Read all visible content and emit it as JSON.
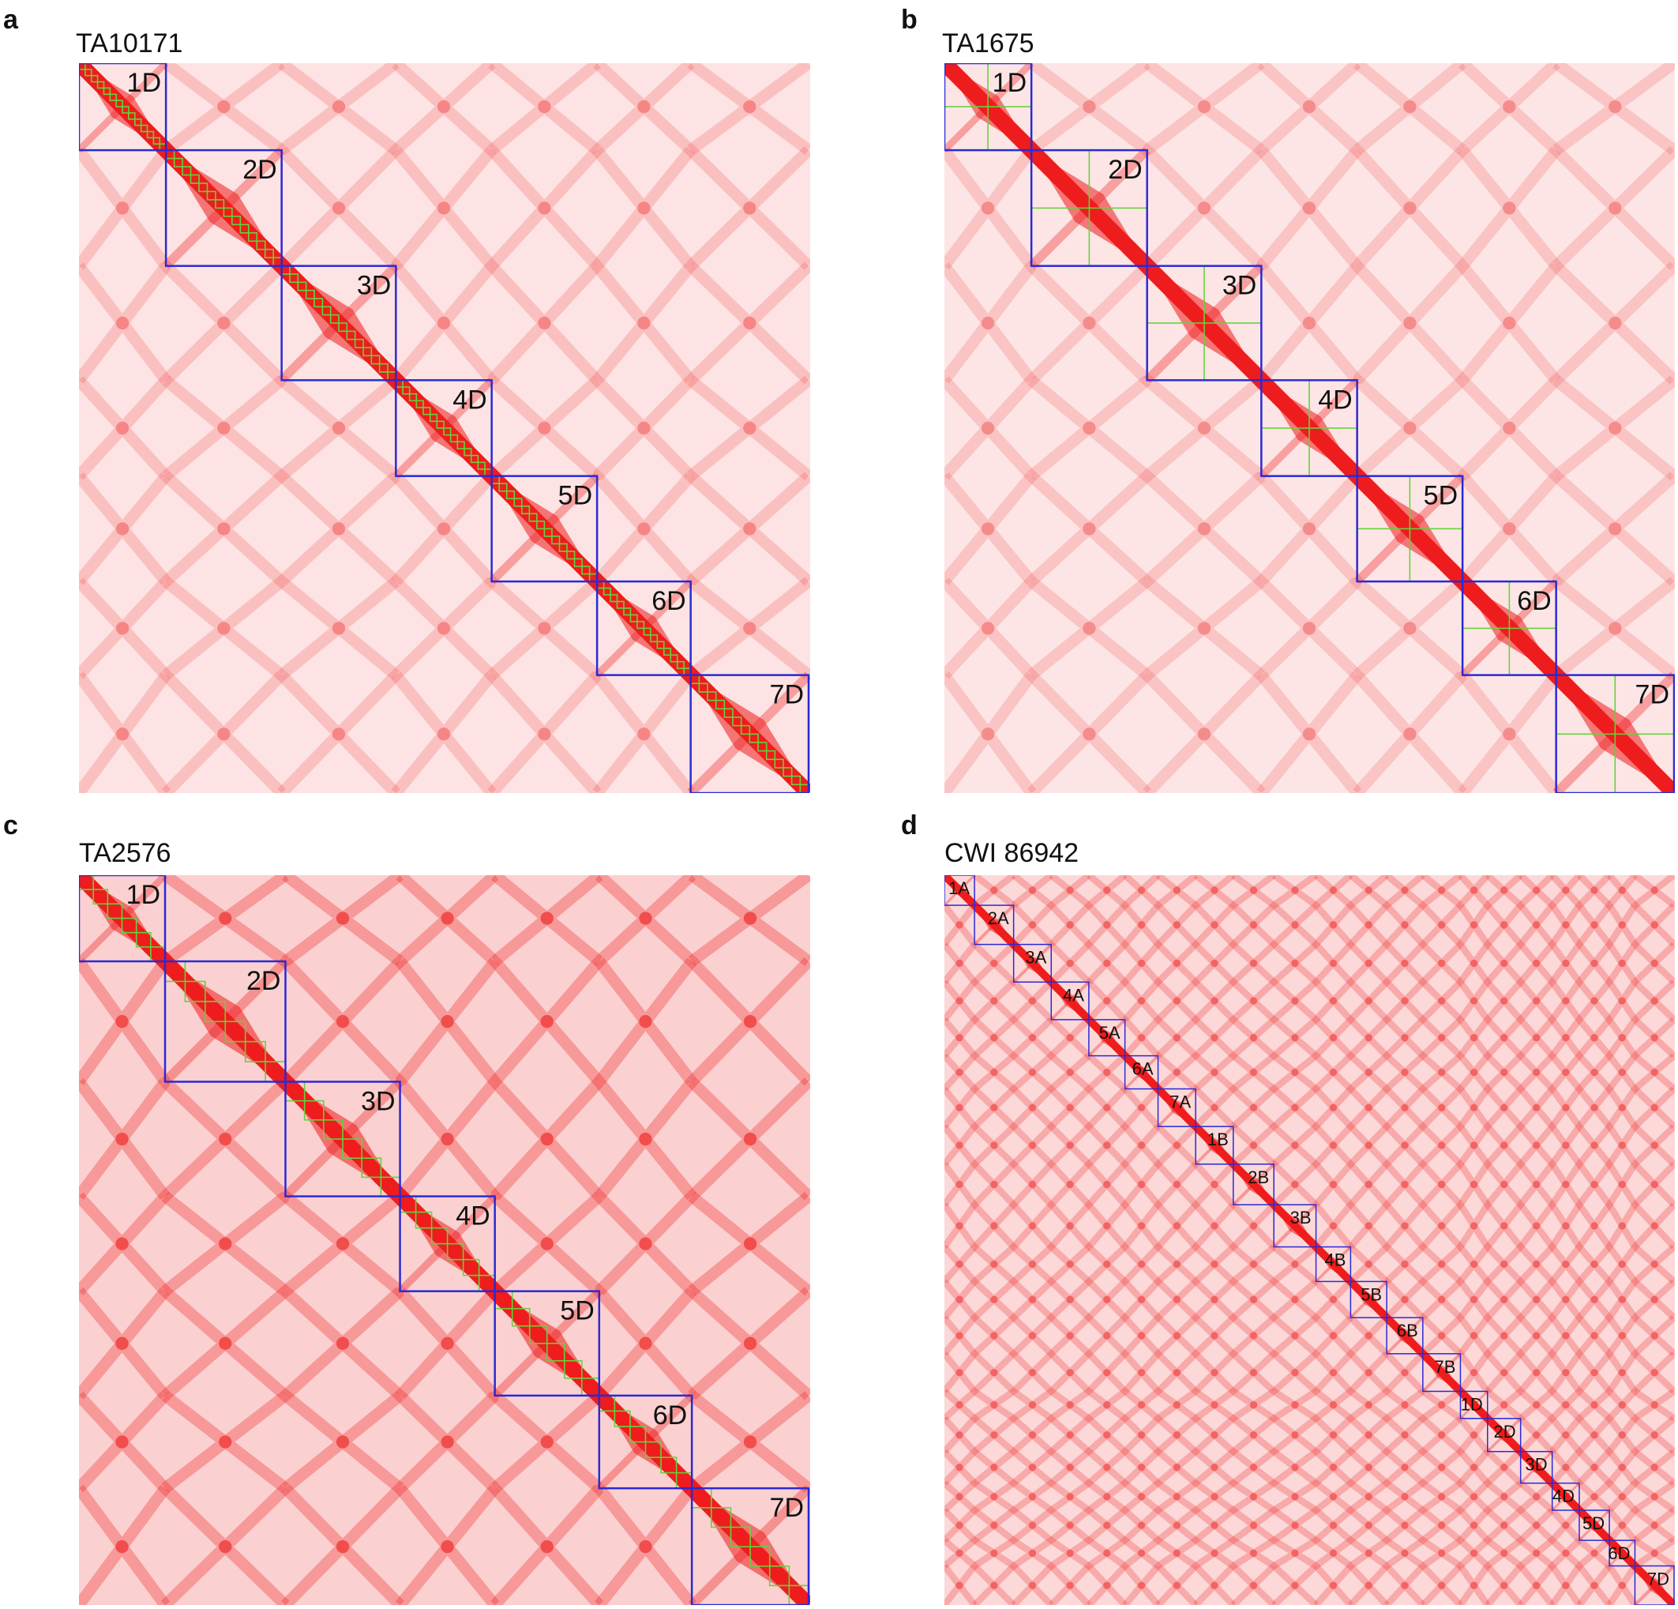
{
  "panels": [
    {
      "letter": "a",
      "sample": "TA10171",
      "genome": "D",
      "chromosomes": [
        {
          "label": "1D",
          "length": 0.118
        },
        {
          "label": "2D",
          "length": 0.157
        },
        {
          "label": "3D",
          "length": 0.155
        },
        {
          "label": "4D",
          "length": 0.13
        },
        {
          "label": "5D",
          "length": 0.143
        },
        {
          "label": "6D",
          "length": 0.127
        },
        {
          "label": "7D",
          "length": 0.16
        }
      ],
      "background_intensity": 0.32,
      "contig_boxes": "many-small"
    },
    {
      "letter": "b",
      "sample": "TA1675",
      "genome": "D",
      "chromosomes": [
        {
          "label": "1D",
          "length": 0.118
        },
        {
          "label": "2D",
          "length": 0.157
        },
        {
          "label": "3D",
          "length": 0.155
        },
        {
          "label": "4D",
          "length": 0.13
        },
        {
          "label": "5D",
          "length": 0.143
        },
        {
          "label": "6D",
          "length": 0.127
        },
        {
          "label": "7D",
          "length": 0.16
        }
      ],
      "background_intensity": 0.3,
      "contig_boxes": "few-large"
    },
    {
      "letter": "c",
      "sample": "TA2576",
      "genome": "D",
      "chromosomes": [
        {
          "label": "1D",
          "length": 0.118
        },
        {
          "label": "2D",
          "length": 0.165
        },
        {
          "label": "3D",
          "length": 0.157
        },
        {
          "label": "4D",
          "length": 0.13
        },
        {
          "label": "5D",
          "length": 0.143
        },
        {
          "label": "6D",
          "length": 0.127
        },
        {
          "label": "7D",
          "length": 0.16
        }
      ],
      "background_intensity": 0.55,
      "contig_boxes": "medium"
    },
    {
      "letter": "d",
      "sample": "CWI 86942",
      "genome": "ABD",
      "chromosomes": [
        {
          "label": "1A",
          "length": 0.04
        },
        {
          "label": "2A",
          "length": 0.052
        },
        {
          "label": "3A",
          "length": 0.05
        },
        {
          "label": "4A",
          "length": 0.05
        },
        {
          "label": "5A",
          "length": 0.048
        },
        {
          "label": "6A",
          "length": 0.044
        },
        {
          "label": "7A",
          "length": 0.05
        },
        {
          "label": "1B",
          "length": 0.05
        },
        {
          "label": "2B",
          "length": 0.054
        },
        {
          "label": "3B",
          "length": 0.056
        },
        {
          "label": "4B",
          "length": 0.046
        },
        {
          "label": "5B",
          "length": 0.048
        },
        {
          "label": "6B",
          "length": 0.048
        },
        {
          "label": "7B",
          "length": 0.05
        },
        {
          "label": "1D",
          "length": 0.036
        },
        {
          "label": "2D",
          "length": 0.044
        },
        {
          "label": "3D",
          "length": 0.042
        },
        {
          "label": "4D",
          "length": 0.036
        },
        {
          "label": "5D",
          "length": 0.04
        },
        {
          "label": "6D",
          "length": 0.034
        },
        {
          "label": "7D",
          "length": 0.052
        }
      ],
      "background_intensity": 0.45,
      "contig_boxes": "none"
    }
  ],
  "colors": {
    "signal": "#ee1c1c",
    "chromosome_box": "#2a2ad6",
    "contig_box": "#66d23c",
    "background": "#ffffff"
  }
}
